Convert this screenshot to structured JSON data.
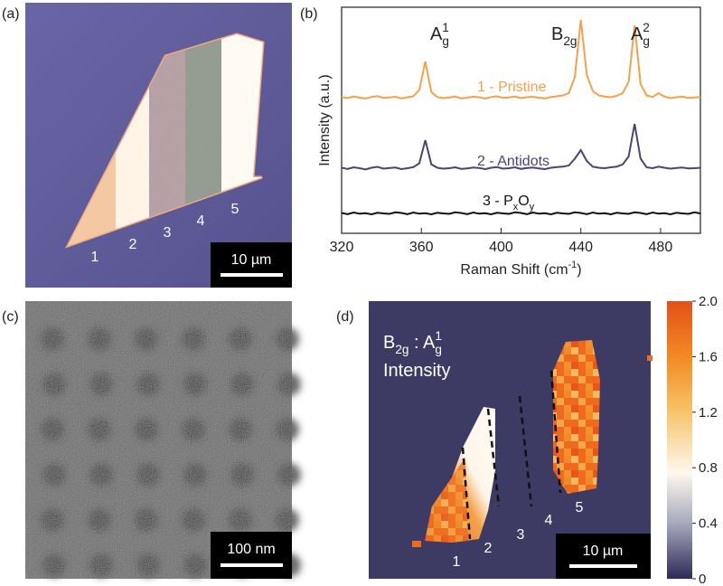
{
  "panel_a": {
    "label": "(a)",
    "region_labels": [
      "1",
      "2",
      "3",
      "4",
      "5"
    ],
    "scale_bar": "10 µm"
  },
  "chart_data": {
    "type": "line",
    "label": "(b)",
    "xlabel": [
      {
        "text": "Raman Shift (cm",
        "style": "normal"
      },
      {
        "text": "-1",
        "style": "sup"
      },
      {
        "text": ")",
        "style": "normal"
      }
    ],
    "ylabel": "Intensity (a.u.)",
    "xlim": [
      320,
      500
    ],
    "xticks": [
      320,
      360,
      400,
      440,
      480
    ],
    "ylim": [
      0,
      10
    ],
    "annotations": [
      [
        {
          "text": "A",
          "style": "normal"
        },
        {
          "text": "g",
          "style": "sub"
        },
        {
          "text": "1",
          "style": "sup"
        }
      ],
      [
        {
          "text": "B",
          "style": "normal"
        },
        {
          "text": "2g",
          "style": "sub"
        }
      ],
      [
        {
          "text": "A",
          "style": "normal"
        },
        {
          "text": "g",
          "style": "sub"
        },
        {
          "text": "2",
          "style": "sup"
        }
      ]
    ],
    "x": [
      320,
      323,
      326,
      329,
      332,
      335,
      338,
      341,
      344,
      347,
      350,
      353,
      356,
      359,
      362,
      365,
      368,
      371,
      374,
      377,
      380,
      383,
      386,
      389,
      392,
      395,
      398,
      401,
      404,
      407,
      410,
      413,
      416,
      419,
      422,
      425,
      428,
      431,
      434,
      437,
      440,
      443,
      446,
      449,
      452,
      455,
      458,
      461,
      464,
      467,
      470,
      473,
      476,
      479,
      482,
      485,
      488,
      491,
      494,
      497,
      500
    ],
    "series": [
      {
        "name": [
          {
            "text": "1 - Pristine",
            "style": "normal"
          }
        ],
        "color": "#f5a04a",
        "values": [
          6.02,
          5.98,
          6.05,
          6.0,
          5.96,
          6.03,
          6.07,
          5.99,
          6.01,
          6.04,
          5.97,
          6.02,
          6.06,
          6.35,
          7.6,
          6.25,
          6.03,
          5.98,
          6.01,
          6.05,
          5.97,
          6.0,
          6.04,
          6.02,
          5.96,
          6.03,
          6.06,
          5.99,
          6.01,
          6.05,
          5.98,
          6.02,
          6.04,
          6.0,
          5.97,
          6.03,
          6.06,
          6.1,
          6.2,
          6.9,
          9.44,
          7.0,
          6.3,
          6.1,
          6.05,
          6.02,
          6.08,
          6.2,
          6.7,
          9.2,
          6.6,
          6.1,
          6.03,
          6.2,
          6.05,
          5.98,
          6.02,
          6.04,
          5.99,
          6.01,
          6.03
        ]
      },
      {
        "name": [
          {
            "text": "2 - Antidots",
            "style": "normal"
          }
        ],
        "color": "#4a4470",
        "values": [
          2.9,
          2.85,
          2.92,
          2.88,
          2.83,
          2.9,
          2.94,
          2.86,
          2.89,
          2.91,
          2.84,
          2.88,
          2.93,
          3.1,
          4.12,
          3.05,
          2.9,
          2.86,
          2.88,
          2.92,
          2.85,
          2.87,
          2.91,
          2.89,
          2.84,
          2.9,
          2.93,
          2.86,
          2.88,
          2.92,
          2.85,
          2.89,
          2.91,
          2.87,
          2.84,
          2.9,
          2.93,
          2.95,
          3.0,
          3.3,
          3.68,
          3.2,
          2.95,
          2.9,
          2.88,
          2.92,
          2.95,
          3.05,
          3.4,
          4.84,
          3.3,
          2.92,
          2.88,
          2.95,
          2.9,
          2.86,
          2.89,
          2.91,
          2.87,
          2.88,
          2.9
        ]
      },
      {
        "name": [
          {
            "text": "3 - P",
            "style": "normal"
          },
          {
            "text": "x",
            "style": "sub"
          },
          {
            "text": "O",
            "style": "normal"
          },
          {
            "text": "y",
            "style": "sub"
          }
        ],
        "color": "#111111",
        "values": [
          0.9,
          0.85,
          0.92,
          0.87,
          0.89,
          0.84,
          0.91,
          0.88,
          0.86,
          0.93,
          0.9,
          0.85,
          0.92,
          0.87,
          0.89,
          0.84,
          0.91,
          0.88,
          0.86,
          0.93,
          0.9,
          0.85,
          0.92,
          0.87,
          0.89,
          0.84,
          0.91,
          0.88,
          0.86,
          0.93,
          0.9,
          0.85,
          0.92,
          0.87,
          0.89,
          0.84,
          0.91,
          0.88,
          0.86,
          0.93,
          0.9,
          0.85,
          0.92,
          0.87,
          0.89,
          0.84,
          0.91,
          0.88,
          0.86,
          0.93,
          0.9,
          0.85,
          0.92,
          0.87,
          0.89,
          0.84,
          0.91,
          0.88,
          0.86,
          0.93,
          0.88
        ]
      }
    ]
  },
  "panel_c": {
    "label": "(c)",
    "scale_bar": "100 nm"
  },
  "panel_d": {
    "label": "(d)",
    "title": [
      {
        "text": "B",
        "style": "normal"
      },
      {
        "text": "2g",
        "style": "sub"
      },
      {
        "text": " : A",
        "style": "normal"
      },
      {
        "text": "g",
        "style": "sub"
      },
      {
        "text": "1",
        "style": "sup"
      }
    ],
    "subtitle": "Intensity",
    "region_labels": [
      "1",
      "2",
      "3",
      "4",
      "5"
    ],
    "scale_bar": "10 µm",
    "colorbar": {
      "lim": [
        0,
        2
      ],
      "ticks": [
        0,
        0.4,
        0.8,
        1.2,
        1.6,
        {
          "value": 2,
          "label": "2.0"
        }
      ]
    }
  }
}
